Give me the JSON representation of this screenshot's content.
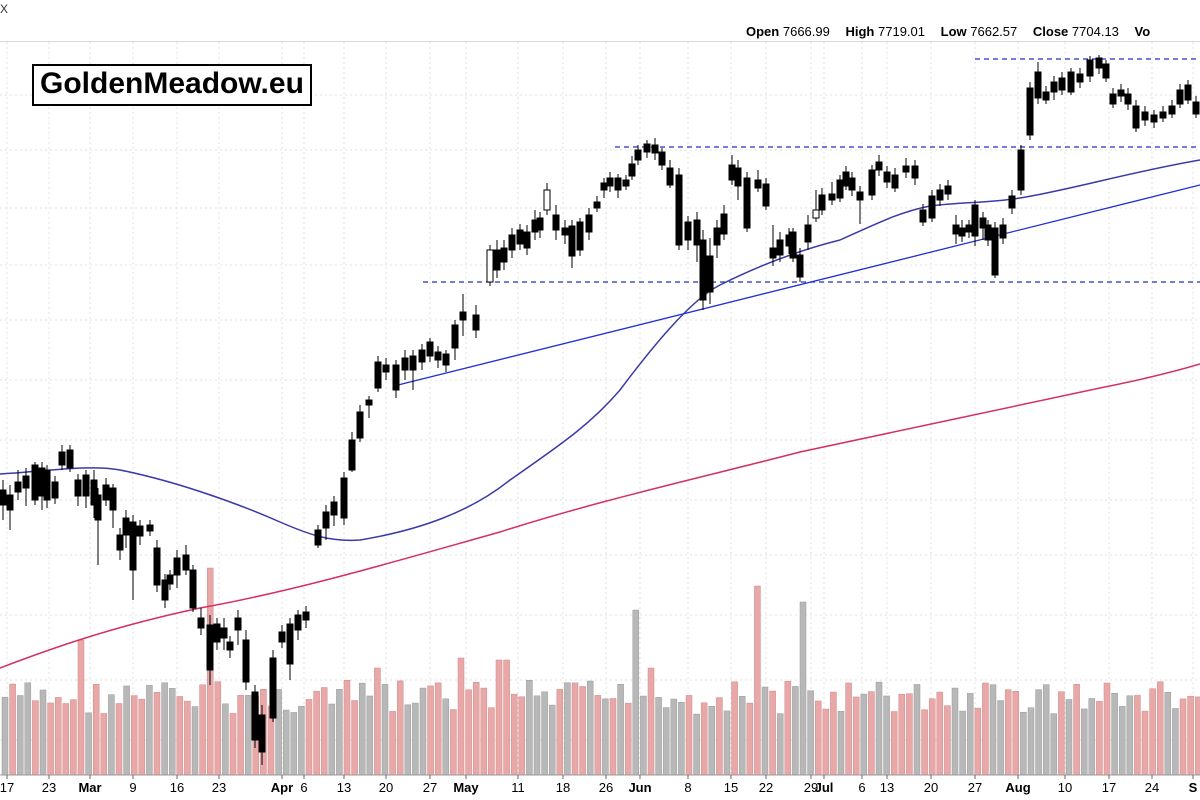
{
  "ticker": "X",
  "logo": "GoldenMeadow.eu",
  "ohlc": {
    "open_label": "Open",
    "open": "7666.99",
    "high_label": "High",
    "high": "7719.01",
    "low_label": "Low",
    "low": "7662.57",
    "close_label": "Close",
    "close": "7704.13",
    "vol_label": "Vo"
  },
  "colors": {
    "up": "#ffffff",
    "down": "#000000",
    "ma_short": "#3a3aa8",
    "ma_long": "#d43060",
    "trend": "#2030d0",
    "vol_up": "#b8b8b8",
    "vol_down": "#e8a8a8",
    "level": "#2030c0",
    "grid": "#e0e0e0"
  },
  "chart_data": {
    "type": "candlestick",
    "x_tick_labels": [
      "17",
      "23",
      "Mar",
      "9",
      "16",
      "23",
      "Apr",
      "6",
      "13",
      "20",
      "27",
      "May",
      "11",
      "18",
      "26",
      "Jun",
      "8",
      "15",
      "22",
      "29",
      "Jul",
      "6",
      "13",
      "20",
      "27",
      "Aug",
      "10",
      "17",
      "24",
      "S"
    ],
    "grid": "dashed",
    "horizontal_levels": [
      "upper-resistance",
      "mid-resistance",
      "support"
    ],
    "moving_averages": [
      "short-term",
      "long-term"
    ],
    "volume_panel": true
  }
}
